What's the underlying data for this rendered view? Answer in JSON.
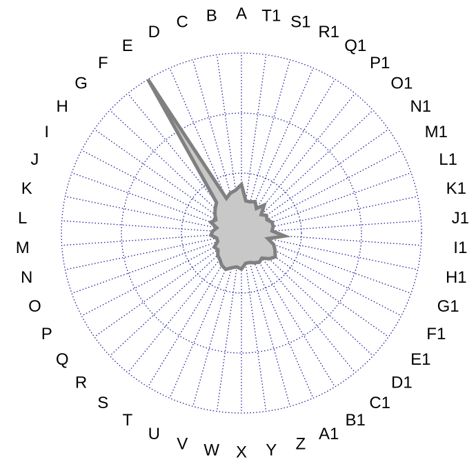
{
  "chart_data": {
    "type": "radar",
    "title": "",
    "categories": [
      "A",
      "B",
      "C",
      "D",
      "E",
      "F",
      "G",
      "H",
      "I",
      "J",
      "K",
      "L",
      "M",
      "N",
      "O",
      "P",
      "Q",
      "R",
      "S",
      "T",
      "U",
      "V",
      "W",
      "X",
      "Y",
      "Z",
      "A1",
      "B1",
      "C1",
      "D1",
      "E1",
      "F1",
      "G1",
      "H1",
      "I1",
      "J1",
      "K1",
      "L1",
      "M1",
      "N1",
      "O1",
      "P1",
      "Q1",
      "R1",
      "S1",
      "T1"
    ],
    "series": [
      {
        "values": [
          27,
          24,
          23,
          21,
          100,
          22,
          20,
          18,
          16,
          18,
          14,
          16,
          17,
          14,
          14,
          17,
          16,
          18,
          19,
          21,
          22,
          20,
          19,
          20,
          17,
          17,
          18,
          19,
          18,
          21,
          23,
          21,
          19,
          15,
          24,
          17,
          18,
          18,
          16,
          17,
          15,
          20,
          16,
          19,
          18,
          18
        ]
      }
    ],
    "rlim": [
      0,
      100
    ],
    "ring_count": 3,
    "grid": true,
    "colors": {
      "fill": "#c8c8c8",
      "stroke": "#808080",
      "grid": "#1a1a99"
    }
  }
}
